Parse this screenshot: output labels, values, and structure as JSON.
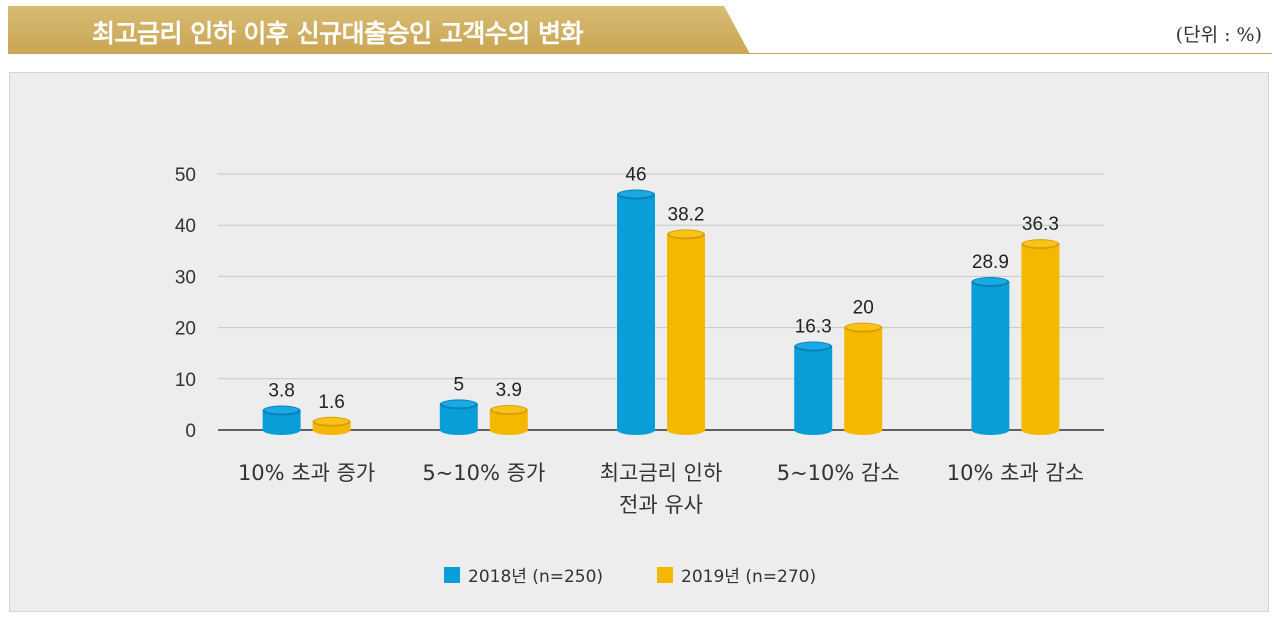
{
  "header": {
    "title": "최고금리 인하 이후 신규대출승인 고객수의 변화",
    "unit": "(단위 : %)"
  },
  "colors": {
    "banner": "#c9a554",
    "series_2018": "#0a9ed9",
    "series_2019": "#f5b800",
    "panel_bg": "#ededed"
  },
  "chart_data": {
    "type": "bar",
    "categories": [
      [
        "10% 초과 증가"
      ],
      [
        "5~10% 증가"
      ],
      [
        "최고금리 인하",
        "전과 유사"
      ],
      [
        "5~10% 감소"
      ],
      [
        "10% 초과 감소"
      ]
    ],
    "series": [
      {
        "name": "2018년 (n=250)",
        "values": [
          3.8,
          5,
          46,
          16.3,
          28.9
        ],
        "labels": [
          "3.8",
          "5",
          "46",
          "16.3",
          "28.9"
        ]
      },
      {
        "name": "2019년 (n=270)",
        "values": [
          1.6,
          3.9,
          38.2,
          20,
          36.3
        ],
        "labels": [
          "1.6",
          "3.9",
          "38.2",
          "20",
          "36.3"
        ]
      }
    ],
    "yticks": [
      "0",
      "10",
      "20",
      "30",
      "40",
      "50"
    ],
    "ylim": [
      0,
      50
    ],
    "grid": true,
    "legend_position": "bottom-center"
  }
}
